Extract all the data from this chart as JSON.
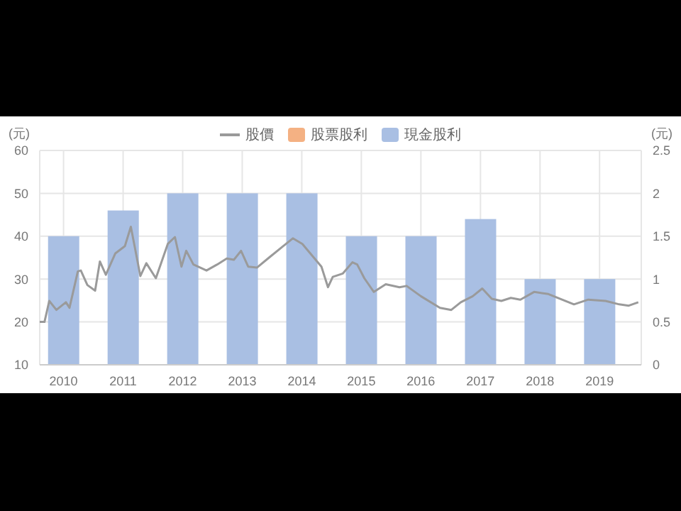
{
  "chart_data": {
    "type": "bar",
    "ylabel": "(元)",
    "y2label": "(元)",
    "x": [
      2010,
      2011,
      2012,
      2013,
      2014,
      2015,
      2016,
      2017,
      2018,
      2019
    ],
    "xlim": [
      2009.6,
      2019.7
    ],
    "xticks": [
      2010,
      2011,
      2012,
      2013,
      2014,
      2015,
      2016,
      2017,
      2018,
      2019
    ],
    "ylim": [
      10,
      60
    ],
    "yticks": [
      10,
      20,
      30,
      40,
      50,
      60
    ],
    "y2lim": [
      0,
      2.5
    ],
    "y2ticks": [
      0,
      0.5,
      1,
      1.5,
      2,
      2.5
    ],
    "grid": true,
    "legend": "top",
    "marker": "none",
    "line_style": "solid",
    "series": [
      {
        "name": "股價",
        "type": "line",
        "axis": "y",
        "color": "#9a9a9a",
        "x": [
          2009.6,
          2009.68,
          2009.76,
          2009.88,
          2010.04,
          2010.1,
          2010.24,
          2010.29,
          2010.4,
          2010.53,
          2010.61,
          2010.71,
          2010.87,
          2011.03,
          2011.13,
          2011.29,
          2011.39,
          2011.55,
          2011.75,
          2011.87,
          2011.98,
          2012.06,
          2012.18,
          2012.4,
          2012.58,
          2012.74,
          2012.86,
          2012.98,
          2013.1,
          2013.25,
          2013.45,
          2013.69,
          2013.85,
          2014.01,
          2014.33,
          2014.44,
          2014.52,
          2014.69,
          2014.85,
          2014.93,
          2015.05,
          2015.21,
          2015.41,
          2015.64,
          2015.76,
          2016.0,
          2016.32,
          2016.51,
          2016.67,
          2016.87,
          2017.03,
          2017.19,
          2017.35,
          2017.51,
          2017.67,
          2017.9,
          2018.14,
          2018.37,
          2018.57,
          2018.81,
          2019.1,
          2019.33,
          2019.49,
          2019.65
        ],
        "values": [
          20,
          20,
          24.9,
          22.8,
          24.6,
          23.3,
          31.8,
          32,
          28.6,
          27.3,
          34.1,
          31,
          36,
          37.7,
          42.2,
          30.7,
          33.7,
          30.2,
          38.2,
          39.8,
          32.9,
          36.6,
          33.4,
          32,
          33.4,
          34.8,
          34.5,
          36.6,
          32.9,
          32.7,
          35,
          37.7,
          39.5,
          38.2,
          32.9,
          28.1,
          30.5,
          31.3,
          33.9,
          33.4,
          30.2,
          27,
          28.8,
          28.1,
          28.4,
          26,
          23.3,
          22.8,
          24.6,
          26,
          27.8,
          25.4,
          24.9,
          25.6,
          25.2,
          27,
          26.5,
          25.2,
          24.1,
          25.2,
          24.9,
          24.1,
          23.8,
          24.6
        ]
      },
      {
        "name": "股票股利",
        "axis": "y2",
        "color": "#f4b183",
        "values": [
          null,
          null,
          null,
          null,
          null,
          null,
          null,
          null,
          null,
          null
        ]
      },
      {
        "name": "現金股利",
        "axis": "y2",
        "color": "#a9bfe3",
        "values": [
          1.5,
          1.8,
          2,
          2,
          2,
          1.5,
          1.5,
          1.7,
          1,
          1
        ]
      }
    ]
  }
}
